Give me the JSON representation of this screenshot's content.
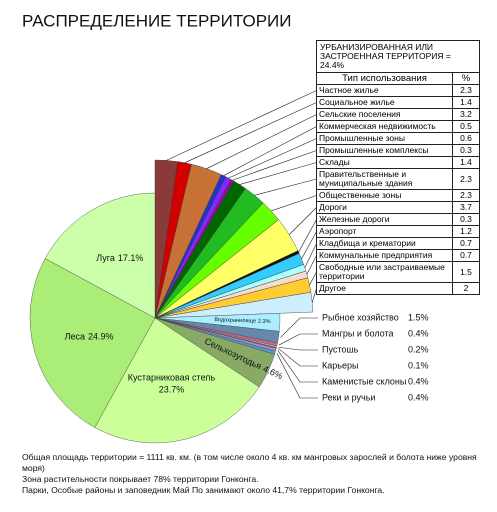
{
  "chart_data": {
    "type": "pie",
    "title": "РАСПРЕДЕЛЕНИЕ ТЕРРИТОРИИ",
    "urban": {
      "header": "УРБАНИЗИРОВАННАЯ ИЛИ ЗАСТРОЕННАЯ ТЕРРИТОРИЯ = 24.4%",
      "column_headers": [
        "Тип использования",
        "%"
      ],
      "categories": [
        "Частное жилье",
        "Социальное жилье",
        "Сельские поселения",
        "Коммерческая недвижимость",
        "Промышленные зоны",
        "Промышленные комплексы",
        "Склады",
        "Правительственные и муниципальные здания",
        "Общественные зоны",
        "Дороги",
        "Железные дороги",
        "Аэропорт",
        "Кладбища и крематории",
        "Коммунальные предприятия",
        "Свободные или застраиваемые территории",
        "Другое"
      ],
      "values": [
        2.3,
        1.4,
        3.2,
        0.5,
        0.6,
        0.3,
        1.4,
        2.3,
        2.3,
        3.7,
        0.3,
        1.2,
        0.7,
        0.7,
        1.5,
        2.0
      ],
      "colors": [
        "#8b3a3a",
        "#d40000",
        "#c87137",
        "#2233cc",
        "#7f2aff",
        "#aa00aa",
        "#006600",
        "#22bb22",
        "#66ff00",
        "#ffff66",
        "#111111",
        "#33ccff",
        "#aaffff",
        "#f6dccc",
        "#ffcc33",
        "#cceeff"
      ]
    },
    "other": {
      "categories": [
        "Водохранилище",
        "Рыбное хозяйство",
        "Мангры и болота",
        "Пустошь",
        "Карьеры",
        "Каменистые склоны",
        "Реки и ручьи",
        "Сельхозугодья",
        "Кустарниковая степь",
        "Леса",
        "Луга"
      ],
      "values": [
        2.3,
        1.5,
        0.4,
        0.2,
        0.1,
        0.4,
        0.4,
        4.6,
        23.7,
        24.9,
        17.1
      ],
      "value_labels": [
        "2.3%",
        "1.5%",
        "0.4%",
        "0.2%",
        "0.1%",
        "0.4%",
        "0.4%",
        "4.6%",
        "23.7%",
        "24.9%",
        "17.1%"
      ],
      "colors": [
        "#aaeeff",
        "#6688aa",
        "#cc6688",
        "#bbbbbb",
        "#888888",
        "#aa88cc",
        "#5599cc",
        "#88aa66",
        "#ccff99",
        "#aaee77",
        "#ccffaa"
      ]
    }
  },
  "notes": [
    "Общая площадь территории = 1111 кв. км. (в том числе около 4 кв. км мангровых зарослей и болота ниже уровня моря)",
    "Зона растительности покрывает 78% территории Гонконга.",
    "Парки, Особые районы и заповедник Май По занимают около 41,7% территории Гонконга."
  ]
}
